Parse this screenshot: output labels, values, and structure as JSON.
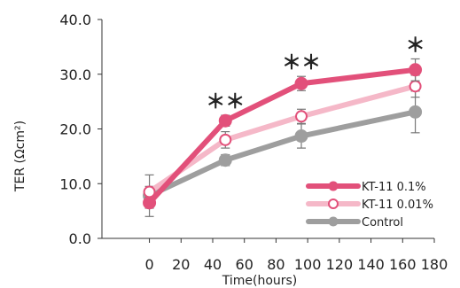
{
  "chart_data": {
    "type": "line",
    "xlabel": "Time(hours)",
    "ylabel": "TER (Ωcm²)",
    "xlim": [
      -30,
      180
    ],
    "ylim": [
      0,
      40
    ],
    "x_ticks": [
      "0",
      "20",
      "40",
      "60",
      "80",
      "100",
      "120",
      "140",
      "160",
      "180"
    ],
    "y_ticks": [
      "0.0",
      "10.0",
      "20.0",
      "30.0",
      "40.0"
    ],
    "x": [
      0,
      48,
      96,
      168
    ],
    "series": [
      {
        "name": "KT-11 0.1%",
        "values": [
          6.5,
          21.5,
          28.3,
          30.8
        ],
        "errors": [
          1.0,
          1.0,
          1.3,
          2.0
        ],
        "color": "#e2507a",
        "marker": "filled-circle"
      },
      {
        "name": "KT-11 0.01%",
        "values": [
          8.5,
          18.0,
          22.3,
          27.8
        ],
        "errors": [
          1.0,
          1.5,
          1.3,
          2.0
        ],
        "color": "#f5b8c8",
        "marker": "open-circle"
      },
      {
        "name": "Control",
        "values": [
          7.8,
          14.3,
          18.7,
          23.1
        ],
        "errors": [
          3.8,
          1.0,
          2.2,
          3.8
        ],
        "color": "#9e9e9e",
        "marker": "filled-circle"
      }
    ],
    "significance": [
      {
        "x": 48,
        "label": "＊＊"
      },
      {
        "x": 96,
        "label": "＊＊"
      },
      {
        "x": 168,
        "label": "＊"
      }
    ],
    "legend_position": "bottom-right",
    "grid": false
  }
}
